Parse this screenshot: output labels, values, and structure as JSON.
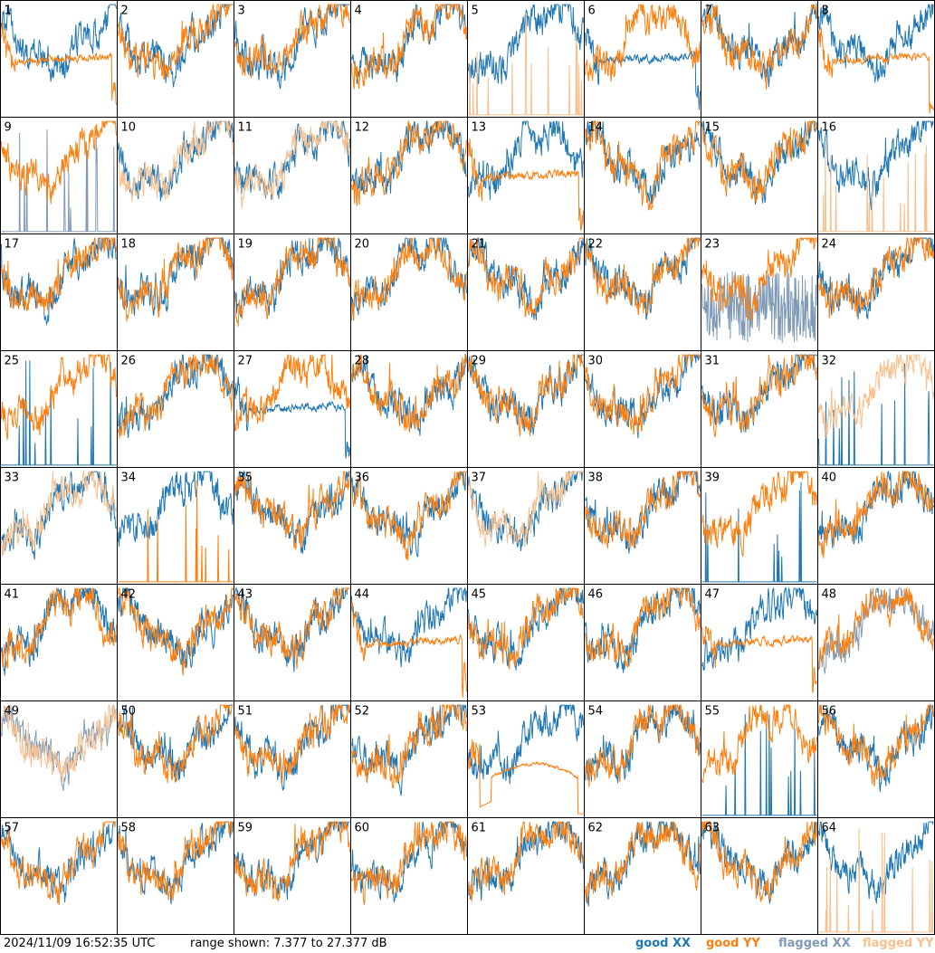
{
  "footer": {
    "timestamp": "2024/11/09 16:52:35 UTC",
    "range_text": "range shown: 7.377 to 27.377 dB"
  },
  "colors": {
    "good_xx": "#1f77b4",
    "good_yy": "#ff7f0e",
    "flagged_xx": "#7f9bb8",
    "flagged_yy": "#f7c08e"
  },
  "chart_data": {
    "type": "line",
    "layout": "8x8 small multiples",
    "ylim": [
      7.377,
      27.377
    ],
    "unit": "dB",
    "legend": [
      {
        "label": "good XX",
        "key": "good_xx"
      },
      {
        "label": "good YY",
        "key": "good_yy"
      },
      {
        "label": "flagged XX",
        "key": "flagged_xx"
      },
      {
        "label": "flagged YY",
        "key": "flagged_yy"
      }
    ],
    "legend_position": "bottom-right",
    "tiles": [
      {
        "id": "1",
        "xx": "good",
        "yy": "good",
        "yy_shape": "plateau"
      },
      {
        "id": "2",
        "xx": "good",
        "yy": "good"
      },
      {
        "id": "3",
        "xx": "good",
        "yy": "good"
      },
      {
        "id": "4",
        "xx": "good",
        "yy": "good"
      },
      {
        "id": "5",
        "xx": "good",
        "yy": "flagged",
        "yy_shape": "spikes"
      },
      {
        "id": "6",
        "xx": "good",
        "yy": "good",
        "xx_shape": "plateau"
      },
      {
        "id": "7",
        "xx": "good",
        "yy": "good"
      },
      {
        "id": "8",
        "xx": "good",
        "yy": "good",
        "yy_shape": "plateau"
      },
      {
        "id": "9",
        "xx": "flagged",
        "yy": "good",
        "xx_shape": "spikes"
      },
      {
        "id": "10",
        "xx": "good",
        "yy": "flagged"
      },
      {
        "id": "11",
        "xx": "good",
        "yy": "flagged"
      },
      {
        "id": "12",
        "xx": "good",
        "yy": "good"
      },
      {
        "id": "13",
        "xx": "good",
        "yy": "good",
        "yy_shape": "plateau"
      },
      {
        "id": "14",
        "xx": "good",
        "yy": "good"
      },
      {
        "id": "15",
        "xx": "good",
        "yy": "good"
      },
      {
        "id": "16",
        "xx": "good",
        "yy": "flagged",
        "yy_shape": "spikes"
      },
      {
        "id": "17",
        "xx": "good",
        "yy": "good"
      },
      {
        "id": "18",
        "xx": "good",
        "yy": "good"
      },
      {
        "id": "19",
        "xx": "good",
        "yy": "good"
      },
      {
        "id": "20",
        "xx": "good",
        "yy": "good"
      },
      {
        "id": "21",
        "xx": "good",
        "yy": "good"
      },
      {
        "id": "22",
        "xx": "good",
        "yy": "good"
      },
      {
        "id": "23",
        "xx": "flagged",
        "yy": "good",
        "xx_shape": "noisy"
      },
      {
        "id": "24",
        "xx": "good",
        "yy": "good"
      },
      {
        "id": "25",
        "xx": "good",
        "yy": "good",
        "xx_shape": "spikes"
      },
      {
        "id": "26",
        "xx": "good",
        "yy": "good"
      },
      {
        "id": "27",
        "xx": "good",
        "yy": "good",
        "xx_shape": "plateau"
      },
      {
        "id": "28",
        "xx": "good",
        "yy": "good"
      },
      {
        "id": "29",
        "xx": "good",
        "yy": "good"
      },
      {
        "id": "30",
        "xx": "good",
        "yy": "good"
      },
      {
        "id": "31",
        "xx": "good",
        "yy": "good"
      },
      {
        "id": "32",
        "xx": "good",
        "yy": "flagged",
        "xx_shape": "spikes"
      },
      {
        "id": "33",
        "xx": "good",
        "yy": "flagged"
      },
      {
        "id": "34",
        "xx": "good",
        "yy": "good",
        "yy_shape": "spikes"
      },
      {
        "id": "35",
        "xx": "good",
        "yy": "good"
      },
      {
        "id": "36",
        "xx": "good",
        "yy": "good"
      },
      {
        "id": "37",
        "xx": "good",
        "yy": "flagged"
      },
      {
        "id": "38",
        "xx": "good",
        "yy": "good"
      },
      {
        "id": "39",
        "xx": "good",
        "yy": "good",
        "xx_shape": "spikes"
      },
      {
        "id": "40",
        "xx": "good",
        "yy": "good"
      },
      {
        "id": "41",
        "xx": "good",
        "yy": "good"
      },
      {
        "id": "42",
        "xx": "good",
        "yy": "good"
      },
      {
        "id": "43",
        "xx": "good",
        "yy": "good"
      },
      {
        "id": "44",
        "xx": "good",
        "yy": "good",
        "yy_shape": "plateau"
      },
      {
        "id": "45",
        "xx": "good",
        "yy": "good"
      },
      {
        "id": "46",
        "xx": "good",
        "yy": "good"
      },
      {
        "id": "47",
        "xx": "good",
        "yy": "good",
        "yy_shape": "plateau"
      },
      {
        "id": "48",
        "xx": "flagged",
        "yy": "good"
      },
      {
        "id": "49",
        "xx": "flagged",
        "yy": "flagged"
      },
      {
        "id": "50",
        "xx": "good",
        "yy": "good"
      },
      {
        "id": "51",
        "xx": "good",
        "yy": "good"
      },
      {
        "id": "52",
        "xx": "good",
        "yy": "good"
      },
      {
        "id": "53",
        "xx": "good",
        "yy": "good",
        "yy_shape": "dome"
      },
      {
        "id": "54",
        "xx": "good",
        "yy": "good"
      },
      {
        "id": "55",
        "xx": "good",
        "yy": "good",
        "xx_shape": "spikes"
      },
      {
        "id": "56",
        "xx": "good",
        "yy": "good"
      },
      {
        "id": "57",
        "xx": "good",
        "yy": "good"
      },
      {
        "id": "58",
        "xx": "good",
        "yy": "good"
      },
      {
        "id": "59",
        "xx": "good",
        "yy": "good"
      },
      {
        "id": "60",
        "xx": "good",
        "yy": "good"
      },
      {
        "id": "61",
        "xx": "good",
        "yy": "good"
      },
      {
        "id": "62",
        "xx": "good",
        "yy": "good"
      },
      {
        "id": "63",
        "xx": "good",
        "yy": "good"
      },
      {
        "id": "64",
        "xx": "good",
        "yy": "flagged",
        "yy_shape": "spikes"
      }
    ]
  }
}
